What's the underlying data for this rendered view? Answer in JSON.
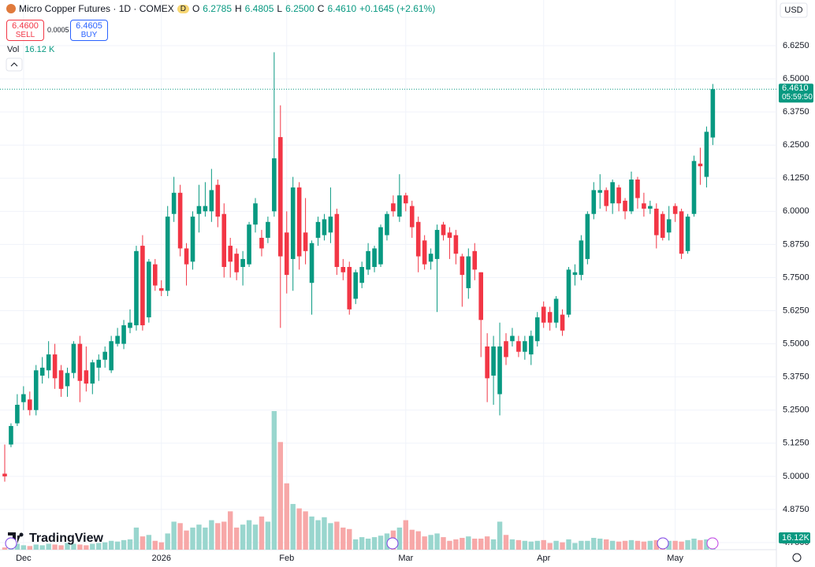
{
  "header": {
    "symbol": "Micro Copper Futures · 1D · COMEX",
    "badge": "D",
    "open_label": "O",
    "open": "6.2785",
    "high_label": "H",
    "high": "6.4805",
    "low_label": "L",
    "low": "6.2500",
    "close_label": "C",
    "close": "6.4610",
    "change": "+0.1645 (+2.61%)",
    "sell_price": "6.4600",
    "sell_label": "SELL",
    "spread": "0.0005",
    "buy_price": "6.4605",
    "buy_label": "BUY",
    "volume_title": "Vol",
    "volume_label": "16.12 K",
    "currency": "USD",
    "brand": "TradingView"
  },
  "chart_data": {
    "type": "candlestick",
    "up_color": "#089981",
    "down_color": "#f23645",
    "up_volume_color": "#99d6ce",
    "down_volume_color": "#f7a8a8",
    "grid": true,
    "last_price_label": "6.4610",
    "countdown": "05:59:50",
    "volume_axis_label": "16.12K",
    "ylim": [
      4.75,
      6.625
    ],
    "yticks": [
      {
        "value": 6.625,
        "label": "6.6250"
      },
      {
        "value": 6.5,
        "label": "6.5000"
      },
      {
        "value": 6.375,
        "label": "6.3750"
      },
      {
        "value": 6.25,
        "label": "6.2500"
      },
      {
        "value": 6.125,
        "label": "6.1250"
      },
      {
        "value": 6.0,
        "label": "6.0000"
      },
      {
        "value": 5.875,
        "label": "5.8750"
      },
      {
        "value": 5.75,
        "label": "5.7500"
      },
      {
        "value": 5.625,
        "label": "5.6250"
      },
      {
        "value": 5.5,
        "label": "5.5000"
      },
      {
        "value": 5.375,
        "label": "5.3750"
      },
      {
        "value": 5.25,
        "label": "5.2500"
      },
      {
        "value": 5.125,
        "label": "5.1250"
      },
      {
        "value": 5.0,
        "label": "5.0000"
      },
      {
        "value": 4.875,
        "label": "4.8750"
      },
      {
        "value": 4.75,
        "label": "4.7500"
      }
    ],
    "xticks": [
      {
        "value": 3,
        "label": "Dec"
      },
      {
        "value": 25,
        "label": "2026"
      },
      {
        "value": 45,
        "label": "Feb"
      },
      {
        "value": 64,
        "label": "Mar"
      },
      {
        "value": 86,
        "label": "Apr"
      },
      {
        "value": 107,
        "label": "May"
      }
    ],
    "candles": [
      [
        5.01,
        5.12,
        4.98,
        5.0
      ],
      [
        5.12,
        5.2,
        5.11,
        5.19
      ],
      [
        5.2,
        5.31,
        5.19,
        5.27
      ],
      [
        5.28,
        5.34,
        5.25,
        5.31
      ],
      [
        5.29,
        5.32,
        5.23,
        5.25
      ],
      [
        5.25,
        5.42,
        5.23,
        5.4
      ],
      [
        5.38,
        5.45,
        5.35,
        5.41
      ],
      [
        5.4,
        5.51,
        5.37,
        5.46
      ],
      [
        5.46,
        5.5,
        5.33,
        5.37
      ],
      [
        5.4,
        5.42,
        5.3,
        5.33
      ],
      [
        5.34,
        5.41,
        5.3,
        5.39
      ],
      [
        5.39,
        5.51,
        5.37,
        5.5
      ],
      [
        5.5,
        5.53,
        5.28,
        5.36
      ],
      [
        5.4,
        5.49,
        5.32,
        5.35
      ],
      [
        5.35,
        5.44,
        5.31,
        5.43
      ],
      [
        5.41,
        5.46,
        5.36,
        5.44
      ],
      [
        5.44,
        5.49,
        5.41,
        5.47
      ],
      [
        5.4,
        5.53,
        5.39,
        5.51
      ],
      [
        5.5,
        5.56,
        5.49,
        5.53
      ],
      [
        5.5,
        5.59,
        5.48,
        5.57
      ],
      [
        5.56,
        5.63,
        5.54,
        5.58
      ],
      [
        5.57,
        5.87,
        5.55,
        5.85
      ],
      [
        5.87,
        5.91,
        5.55,
        5.57
      ],
      [
        5.6,
        5.82,
        5.58,
        5.81
      ],
      [
        5.8,
        5.82,
        5.7,
        5.72
      ],
      [
        5.71,
        5.74,
        5.68,
        5.7
      ],
      [
        5.7,
        6.02,
        5.68,
        5.98
      ],
      [
        5.99,
        6.13,
        5.96,
        6.07
      ],
      [
        6.07,
        6.1,
        5.83,
        5.86
      ],
      [
        5.86,
        5.88,
        5.72,
        5.8
      ],
      [
        5.81,
        6.0,
        5.78,
        5.98
      ],
      [
        5.99,
        6.1,
        5.92,
        6.02
      ],
      [
        6.0,
        6.11,
        5.98,
        6.02
      ],
      [
        6.0,
        6.16,
        5.96,
        6.08
      ],
      [
        6.1,
        6.12,
        5.94,
        5.98
      ],
      [
        5.99,
        6.03,
        5.75,
        5.79
      ],
      [
        5.87,
        5.9,
        5.75,
        5.81
      ],
      [
        5.84,
        5.86,
        5.74,
        5.77
      ],
      [
        5.79,
        5.85,
        5.72,
        5.82
      ],
      [
        5.8,
        5.96,
        5.79,
        5.95
      ],
      [
        5.95,
        6.05,
        5.92,
        6.03
      ],
      [
        5.9,
        5.93,
        5.83,
        5.86
      ],
      [
        5.9,
        5.98,
        5.88,
        5.96
      ],
      [
        6.0,
        6.6,
        5.98,
        6.2
      ],
      [
        6.28,
        6.4,
        5.56,
        5.83
      ],
      [
        5.92,
        6.0,
        5.69,
        5.76
      ],
      [
        5.82,
        6.13,
        5.7,
        6.09
      ],
      [
        6.09,
        6.11,
        5.78,
        5.83
      ],
      [
        5.92,
        6.05,
        5.8,
        5.85
      ],
      [
        5.73,
        5.89,
        5.61,
        5.88
      ],
      [
        5.9,
        5.98,
        5.87,
        5.96
      ],
      [
        5.91,
        5.99,
        5.89,
        5.97
      ],
      [
        5.92,
        6.09,
        5.88,
        5.98
      ],
      [
        5.99,
        6.01,
        5.76,
        5.79
      ],
      [
        5.79,
        5.82,
        5.74,
        5.77
      ],
      [
        5.79,
        5.81,
        5.61,
        5.63
      ],
      [
        5.67,
        5.78,
        5.65,
        5.77
      ],
      [
        5.73,
        5.81,
        5.71,
        5.79
      ],
      [
        5.78,
        5.88,
        5.76,
        5.85
      ],
      [
        5.79,
        5.87,
        5.77,
        5.86
      ],
      [
        5.8,
        5.95,
        5.79,
        5.94
      ],
      [
        5.91,
        6.0,
        5.89,
        5.99
      ],
      [
        6.03,
        6.06,
        5.98,
        6.0
      ],
      [
        5.98,
        6.14,
        5.96,
        6.06
      ],
      [
        6.06,
        6.07,
        6.0,
        6.03
      ],
      [
        6.02,
        6.04,
        5.9,
        5.94
      ],
      [
        5.96,
        5.98,
        5.77,
        5.83
      ],
      [
        5.89,
        5.91,
        5.78,
        5.8
      ],
      [
        5.81,
        5.86,
        5.78,
        5.84
      ],
      [
        5.82,
        5.95,
        5.62,
        5.93
      ],
      [
        5.95,
        5.96,
        5.89,
        5.91
      ],
      [
        5.92,
        5.94,
        5.82,
        5.9
      ],
      [
        5.91,
        5.93,
        5.8,
        5.84
      ],
      [
        5.83,
        5.84,
        5.64,
        5.76
      ],
      [
        5.71,
        5.86,
        5.67,
        5.83
      ],
      [
        5.85,
        5.88,
        5.74,
        5.78
      ],
      [
        5.77,
        5.77,
        5.45,
        5.59
      ],
      [
        5.49,
        5.54,
        5.28,
        5.37
      ],
      [
        5.38,
        5.53,
        5.27,
        5.49
      ],
      [
        5.31,
        5.58,
        5.23,
        5.49
      ],
      [
        5.51,
        5.54,
        5.42,
        5.45
      ],
      [
        5.51,
        5.56,
        5.49,
        5.53
      ],
      [
        5.51,
        5.53,
        5.45,
        5.47
      ],
      [
        5.47,
        5.53,
        5.44,
        5.51
      ],
      [
        5.46,
        5.55,
        5.42,
        5.53
      ],
      [
        5.51,
        5.62,
        5.49,
        5.6
      ],
      [
        5.64,
        5.66,
        5.56,
        5.58
      ],
      [
        5.62,
        5.64,
        5.55,
        5.58
      ],
      [
        5.58,
        5.68,
        5.56,
        5.67
      ],
      [
        5.61,
        5.63,
        5.53,
        5.55
      ],
      [
        5.61,
        5.79,
        5.6,
        5.78
      ],
      [
        5.76,
        5.8,
        5.72,
        5.77
      ],
      [
        5.76,
        5.91,
        5.74,
        5.89
      ],
      [
        5.82,
        6.0,
        5.8,
        5.99
      ],
      [
        5.99,
        6.11,
        5.97,
        6.08
      ],
      [
        6.07,
        6.14,
        6.01,
        6.08
      ],
      [
        6.08,
        6.09,
        6.0,
        6.02
      ],
      [
        6.03,
        6.12,
        5.99,
        6.11
      ],
      [
        6.09,
        6.1,
        6.0,
        6.03
      ],
      [
        6.04,
        6.05,
        5.97,
        6.0
      ],
      [
        6.0,
        6.15,
        5.99,
        6.12
      ],
      [
        6.12,
        6.13,
        6.01,
        6.05
      ],
      [
        6.03,
        6.07,
        5.98,
        6.01
      ],
      [
        6.01,
        6.04,
        5.99,
        6.02
      ],
      [
        6.01,
        6.03,
        5.86,
        5.91
      ],
      [
        5.99,
        6.0,
        5.89,
        5.9
      ],
      [
        5.92,
        6.02,
        5.89,
        5.97
      ],
      [
        6.02,
        6.03,
        5.96,
        5.99
      ],
      [
        6.0,
        6.01,
        5.82,
        5.84
      ],
      [
        5.85,
        5.99,
        5.84,
        5.98
      ],
      [
        5.99,
        6.21,
        5.98,
        6.19
      ],
      [
        6.18,
        6.24,
        6.1,
        6.17
      ],
      [
        6.13,
        6.32,
        6.09,
        6.3
      ],
      [
        6.2785,
        6.4805,
        6.25,
        6.461
      ]
    ],
    "volumes": [
      3,
      6,
      8,
      6,
      5,
      7,
      6,
      8,
      7,
      6,
      9,
      8,
      7,
      6,
      8,
      9,
      10,
      12,
      11,
      13,
      14,
      30,
      18,
      20,
      12,
      10,
      22,
      38,
      36,
      26,
      30,
      34,
      30,
      40,
      36,
      38,
      52,
      30,
      34,
      40,
      34,
      45,
      38,
      188,
      146,
      90,
      62,
      56,
      52,
      45,
      40,
      44,
      36,
      38,
      30,
      28,
      14,
      17,
      15,
      17,
      19,
      22,
      26,
      30,
      40,
      27,
      25,
      18,
      20,
      22,
      17,
      12,
      14,
      16,
      18,
      15,
      15,
      18,
      14,
      38,
      20,
      14,
      13,
      12,
      11,
      12,
      13,
      9,
      12,
      10,
      14,
      9,
      12,
      12,
      16,
      15,
      14,
      12,
      11,
      12,
      13,
      12,
      11,
      12,
      13,
      9,
      12,
      12,
      11,
      13,
      15,
      13,
      14,
      16.12
    ]
  }
}
